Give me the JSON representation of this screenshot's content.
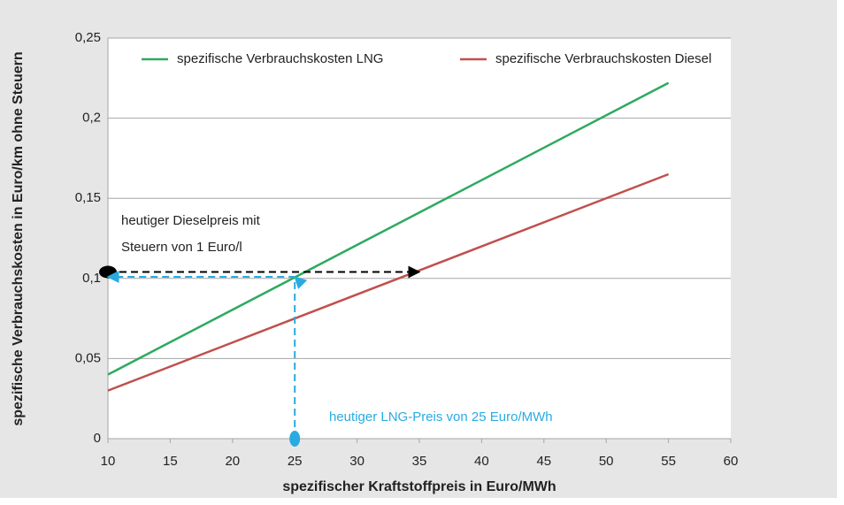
{
  "chart_data": {
    "type": "line",
    "x_label": "spezifischer Kraftstoffpreis in Euro/MWh",
    "y_label": "spezifische Verbrauchskosten in Euro/km ohne Steuern",
    "series": [
      {
        "name": "spezifische Verbrauchskosten LNG",
        "color": "#2daa5f",
        "x": [
          10,
          55
        ],
        "values": [
          0.04,
          0.222
        ]
      },
      {
        "name": "spezifische Verbrauchskosten Diesel",
        "color": "#c0504d",
        "x": [
          10,
          55
        ],
        "values": [
          0.03,
          0.165
        ]
      }
    ],
    "xlim": [
      10,
      60
    ],
    "xticks": [
      10,
      15,
      20,
      25,
      30,
      35,
      40,
      45,
      50,
      55,
      60
    ],
    "ylim": [
      0,
      0.25
    ],
    "yticks": [
      0,
      {
        "value": 0.05,
        "label": "0,05"
      },
      {
        "value": 0.1,
        "label": "0,1"
      },
      {
        "value": 0.15,
        "label": "0,15"
      },
      {
        "value": 0.2,
        "label": "0,2"
      },
      {
        "value": 0.25,
        "label": "0,25"
      }
    ],
    "grid": true,
    "legend": "top",
    "annotations": [
      {
        "lines": [
          "heutiger Dieselpreis mit",
          "Steuern von 1 Euro/l"
        ],
        "color": "#000000",
        "path_x": [
          10,
          35
        ],
        "path_y": [
          0.104,
          0.104
        ]
      },
      {
        "lines": [
          "heutiger LNG-Preis von 25 Euro/MWh"
        ],
        "color": "#29abe2",
        "path_x": [
          25,
          25,
          10
        ],
        "path_y": [
          0,
          0.101,
          0.101
        ]
      }
    ]
  }
}
